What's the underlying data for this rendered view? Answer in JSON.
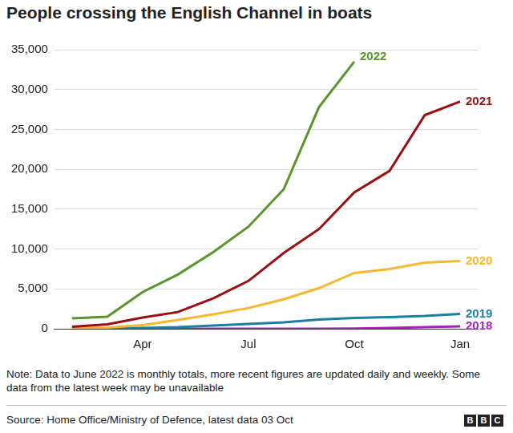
{
  "chart_data": {
    "type": "line",
    "title": "People crossing the English Channel in boats",
    "note": "Note: Data to June 2022 is monthly totals, more recent figures are updated daily and weekly. Some data from the latest week may be unavailable",
    "source": "Source: Home Office/Ministry of Defence, latest data 03 Oct",
    "logo": "BBC",
    "categories": [
      null,
      null,
      "Apr",
      null,
      null,
      "Jul",
      null,
      null,
      "Oct",
      null,
      null,
      "Jan"
    ],
    "series": [
      {
        "name": "2022",
        "color": "#58962d",
        "values": [
          1300,
          1500,
          4600,
          6800,
          9600,
          12800,
          17500,
          27800,
          33500,
          null,
          null,
          null
        ]
      },
      {
        "name": "2021",
        "color": "#990f14",
        "values": [
          250,
          550,
          1400,
          2100,
          3800,
          6000,
          9500,
          12500,
          17100,
          19800,
          26800,
          28500
        ]
      },
      {
        "name": "2020",
        "color": "#f5b82e",
        "values": [
          50,
          150,
          450,
          1100,
          1800,
          2600,
          3700,
          5100,
          7000,
          7500,
          8300,
          8500
        ]
      },
      {
        "name": "2019",
        "color": "#1a80a0",
        "values": [
          0,
          50,
          100,
          200,
          400,
          600,
          800,
          1150,
          1350,
          1450,
          1600,
          1850
        ]
      },
      {
        "name": "2018",
        "color": "#a81fc4",
        "values": [
          0,
          0,
          0,
          0,
          0,
          0,
          0,
          0,
          30,
          100,
          200,
          300
        ]
      }
    ],
    "ylim": [
      0,
      35000
    ],
    "yticks": [
      0,
      {
        "value": 5000,
        "label": "5,000"
      },
      {
        "value": 10000,
        "label": "10,000"
      },
      {
        "value": 15000,
        "label": "15,000"
      },
      {
        "value": 20000,
        "label": "20,000"
      },
      {
        "value": 25000,
        "label": "25,000"
      },
      {
        "value": 30000,
        "label": "30,000"
      },
      {
        "value": 35000,
        "label": "35,000"
      }
    ],
    "grid": true
  }
}
